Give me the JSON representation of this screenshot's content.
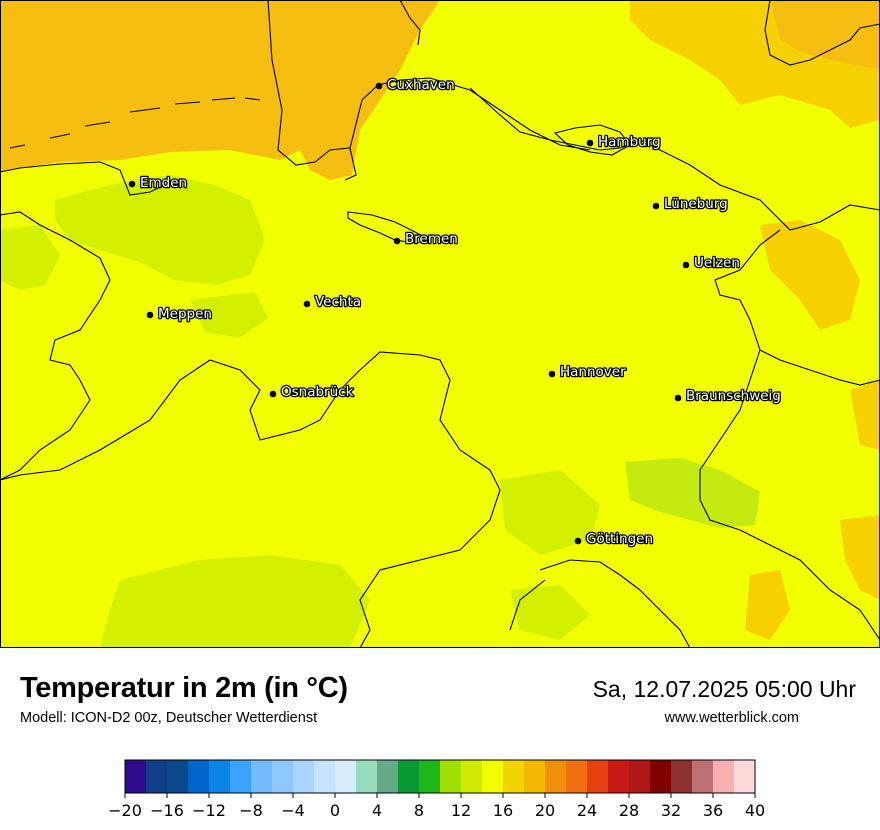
{
  "map": {
    "base_color": "#f2ff00",
    "zone_colors": {
      "warm_orange": "#f5be10",
      "warm_amber": "#f7d000",
      "cool_lime": "#d2f000",
      "cool_green": "#c4ea10"
    },
    "cities": [
      {
        "name": "Cuxhaven"
      },
      {
        "name": "Hamburg"
      },
      {
        "name": "Emden"
      },
      {
        "name": "Lüneburg"
      },
      {
        "name": "Bremen"
      },
      {
        "name": "Uelzen"
      },
      {
        "name": "Vechta"
      },
      {
        "name": "Meppen"
      },
      {
        "name": "Hannover"
      },
      {
        "name": "Osnabrück"
      },
      {
        "name": "Braunschweig"
      },
      {
        "name": "Göttingen"
      }
    ]
  },
  "info": {
    "title": "Temperatur in 2m (in °C)",
    "subtitle": "Modell: ICON-D2 00z, Deutscher Wetterdienst",
    "datetime": "Sa, 12.07.2025 05:00 Uhr",
    "website": "www.wetterblick.com"
  },
  "legend": {
    "colors": [
      "#2e0a8c",
      "#0f3d86",
      "#0a4a8c",
      "#0066cc",
      "#0a85e8",
      "#3aa3ff",
      "#75bbff",
      "#8ec6ff",
      "#a8d4ff",
      "#c8e3ff",
      "#d8ecff",
      "#98dcc0",
      "#66aa88",
      "#0a9a32",
      "#20b818",
      "#a0e000",
      "#d0ec00",
      "#f2ff00",
      "#f2d400",
      "#f5b800",
      "#f0900a",
      "#f07010",
      "#e84010",
      "#c81818",
      "#b01818",
      "#800000",
      "#8c3030",
      "#c07070",
      "#f8b0b0",
      "#ffd8d8"
    ],
    "tick_labels": [
      "−20",
      "−16",
      "−12",
      "−8",
      "−4",
      "0",
      "4",
      "8",
      "12",
      "16",
      "20",
      "24",
      "28",
      "32",
      "36",
      "40"
    ]
  }
}
